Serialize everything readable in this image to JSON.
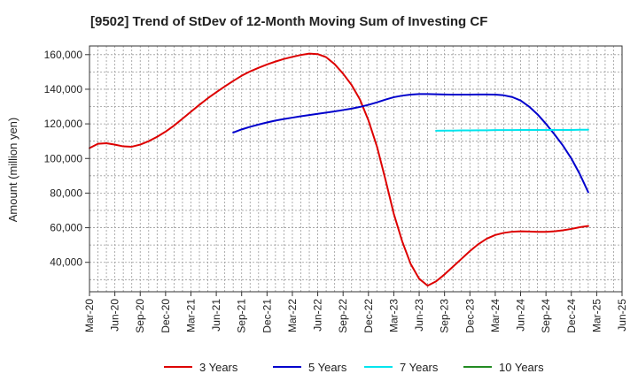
{
  "chart_data": {
    "type": "line",
    "title": "[9502]  Trend of StDev of 12-Month Moving Sum of Investing CF",
    "xlabel": "",
    "ylabel": "Amount (million yen)",
    "ylim": [
      23000,
      165000
    ],
    "yticks": [
      40000,
      60000,
      80000,
      100000,
      120000,
      140000,
      160000
    ],
    "ytick_labels": [
      "40,000",
      "60,000",
      "80,000",
      "100,000",
      "120,000",
      "140,000",
      "160,000"
    ],
    "xlim": [
      "2020-03",
      "2025-06"
    ],
    "xtick_labels": [
      "Mar-20",
      "Jun-20",
      "Sep-20",
      "Dec-20",
      "Mar-21",
      "Jun-21",
      "Sep-21",
      "Dec-21",
      "Mar-22",
      "Jun-22",
      "Sep-22",
      "Dec-22",
      "Mar-23",
      "Jun-23",
      "Sep-23",
      "Dec-23",
      "Mar-24",
      "Jun-24",
      "Sep-24",
      "Dec-24",
      "Mar-25",
      "Jun-25"
    ],
    "grid": true,
    "legend_position": "bottom",
    "series": [
      {
        "name": "3 Years",
        "color": "#dd0000",
        "points": [
          [
            "2020-03",
            106000
          ],
          [
            "2020-04",
            108500
          ],
          [
            "2020-05",
            108800
          ],
          [
            "2020-06",
            108000
          ],
          [
            "2020-07",
            107000
          ],
          [
            "2020-08",
            106800
          ],
          [
            "2020-09",
            108000
          ],
          [
            "2020-10",
            110000
          ],
          [
            "2020-11",
            112500
          ],
          [
            "2020-12",
            115500
          ],
          [
            "2021-01",
            119000
          ],
          [
            "2021-02",
            123000
          ],
          [
            "2021-03",
            127000
          ],
          [
            "2021-04",
            131000
          ],
          [
            "2021-05",
            134800
          ],
          [
            "2021-06",
            138300
          ],
          [
            "2021-07",
            141600
          ],
          [
            "2021-08",
            144800
          ],
          [
            "2021-09",
            147800
          ],
          [
            "2021-10",
            150300
          ],
          [
            "2021-11",
            152400
          ],
          [
            "2021-12",
            154300
          ],
          [
            "2022-01",
            156000
          ],
          [
            "2022-02",
            157500
          ],
          [
            "2022-03",
            158700
          ],
          [
            "2022-04",
            159800
          ],
          [
            "2022-05",
            160600
          ],
          [
            "2022-06",
            160300
          ],
          [
            "2022-07",
            158500
          ],
          [
            "2022-08",
            154500
          ],
          [
            "2022-09",
            149000
          ],
          [
            "2022-10",
            142500
          ],
          [
            "2022-11",
            134000
          ],
          [
            "2022-12",
            122000
          ],
          [
            "2023-01",
            107000
          ],
          [
            "2023-02",
            88000
          ],
          [
            "2023-03",
            68000
          ],
          [
            "2023-04",
            52000
          ],
          [
            "2023-05",
            39000
          ],
          [
            "2023-06",
            30500
          ],
          [
            "2023-07",
            26500
          ],
          [
            "2023-08",
            29000
          ],
          [
            "2023-09",
            33000
          ],
          [
            "2023-10",
            37500
          ],
          [
            "2023-11",
            42000
          ],
          [
            "2023-12",
            46500
          ],
          [
            "2024-01",
            50500
          ],
          [
            "2024-02",
            53700
          ],
          [
            "2024-03",
            55800
          ],
          [
            "2024-04",
            57000
          ],
          [
            "2024-05",
            57700
          ],
          [
            "2024-06",
            57900
          ],
          [
            "2024-07",
            57800
          ],
          [
            "2024-08",
            57600
          ],
          [
            "2024-09",
            57600
          ],
          [
            "2024-10",
            57900
          ],
          [
            "2024-11",
            58500
          ],
          [
            "2024-12",
            59300
          ],
          [
            "2025-01",
            60300
          ],
          [
            "2025-02",
            61000
          ]
        ]
      },
      {
        "name": "5 Years",
        "color": "#0000cc",
        "points": [
          [
            "2021-08",
            115000
          ],
          [
            "2021-09",
            116800
          ],
          [
            "2021-10",
            118300
          ],
          [
            "2021-11",
            119600
          ],
          [
            "2021-12",
            120800
          ],
          [
            "2022-01",
            121900
          ],
          [
            "2022-02",
            122800
          ],
          [
            "2022-03",
            123600
          ],
          [
            "2022-04",
            124400
          ],
          [
            "2022-05",
            125100
          ],
          [
            "2022-06",
            125800
          ],
          [
            "2022-07",
            126500
          ],
          [
            "2022-08",
            127200
          ],
          [
            "2022-09",
            128000
          ],
          [
            "2022-10",
            128800
          ],
          [
            "2022-11",
            129800
          ],
          [
            "2022-12",
            131000
          ],
          [
            "2023-01",
            132400
          ],
          [
            "2023-02",
            134000
          ],
          [
            "2023-03",
            135400
          ],
          [
            "2023-04",
            136300
          ],
          [
            "2023-05",
            136900
          ],
          [
            "2023-06",
            137200
          ],
          [
            "2023-07",
            137200
          ],
          [
            "2023-08",
            137100
          ],
          [
            "2023-09",
            137000
          ],
          [
            "2023-10",
            136900
          ],
          [
            "2023-11",
            136900
          ],
          [
            "2023-12",
            136900
          ],
          [
            "2024-01",
            137000
          ],
          [
            "2024-02",
            137000
          ],
          [
            "2024-03",
            136900
          ],
          [
            "2024-04",
            136500
          ],
          [
            "2024-05",
            135500
          ],
          [
            "2024-06",
            133500
          ],
          [
            "2024-07",
            130000
          ],
          [
            "2024-08",
            125500
          ],
          [
            "2024-09",
            120000
          ],
          [
            "2024-10",
            114000
          ],
          [
            "2024-11",
            107500
          ],
          [
            "2024-12",
            100000
          ],
          [
            "2025-01",
            91000
          ],
          [
            "2025-02",
            80500
          ]
        ]
      },
      {
        "name": "7 Years",
        "color": "#00e5ee",
        "points": [
          [
            "2023-08",
            116000
          ],
          [
            "2023-09",
            116100
          ],
          [
            "2023-10",
            116100
          ],
          [
            "2023-11",
            116200
          ],
          [
            "2023-12",
            116200
          ],
          [
            "2024-01",
            116300
          ],
          [
            "2024-02",
            116300
          ],
          [
            "2024-03",
            116400
          ],
          [
            "2024-04",
            116400
          ],
          [
            "2024-05",
            116400
          ],
          [
            "2024-06",
            116500
          ],
          [
            "2024-07",
            116500
          ],
          [
            "2024-08",
            116500
          ],
          [
            "2024-09",
            116500
          ],
          [
            "2024-10",
            116500
          ],
          [
            "2024-11",
            116500
          ],
          [
            "2024-12",
            116500
          ],
          [
            "2025-01",
            116600
          ],
          [
            "2025-02",
            116600
          ]
        ]
      },
      {
        "name": "10 Years",
        "color": "#228b22",
        "points": []
      }
    ]
  }
}
